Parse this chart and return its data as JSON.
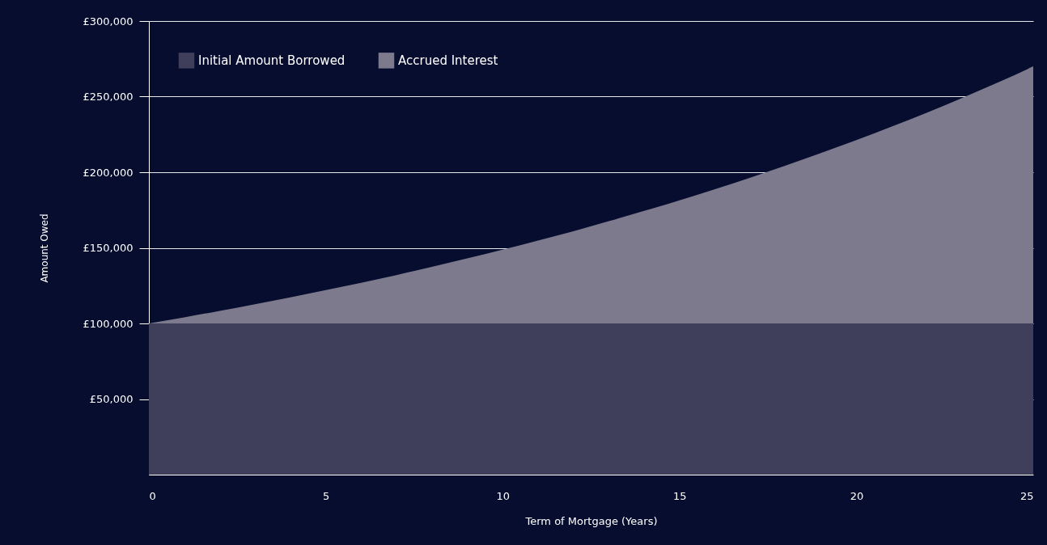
{
  "chart_data": {
    "type": "area",
    "stacked": true,
    "xlabel": "Term of Mortgage (Years)",
    "ylabel": "Amount Owed",
    "x": [
      0,
      1,
      2,
      3,
      4,
      5,
      6,
      7,
      8,
      9,
      10,
      11,
      12,
      13,
      14,
      15,
      16,
      17,
      18,
      19,
      20,
      21,
      22,
      23,
      24,
      25
    ],
    "series": [
      {
        "name": "Initial Amount Borrowed",
        "color": "#403f5b",
        "values": [
          100000,
          100000,
          100000,
          100000,
          100000,
          100000,
          100000,
          100000,
          100000,
          100000,
          100000,
          100000,
          100000,
          100000,
          100000,
          100000,
          100000,
          100000,
          100000,
          100000,
          100000,
          100000,
          100000,
          100000,
          100000,
          100000
        ]
      },
      {
        "name": "Accrued Interest",
        "color": "#7e7a8e",
        "values": [
          0,
          4000,
          8300,
          12700,
          17200,
          22000,
          26900,
          32000,
          37400,
          43000,
          48800,
          54800,
          61000,
          67600,
          74400,
          81400,
          88800,
          96400,
          104400,
          112700,
          121300,
          130200,
          139500,
          149200,
          159300,
          170000
        ]
      }
    ],
    "xlim": [
      0,
      25
    ],
    "xticks": [
      0,
      5,
      10,
      15,
      20,
      25
    ],
    "ylim": [
      0,
      300000
    ],
    "yticks": [
      {
        "value": 50000,
        "label": "£50,000"
      },
      {
        "value": 100000,
        "label": "£100,000"
      },
      {
        "value": 150000,
        "label": "£150,000"
      },
      {
        "value": 200000,
        "label": "£200,000"
      },
      {
        "value": 250000,
        "label": "£250,000"
      },
      {
        "value": 300000,
        "label": "£300,000"
      }
    ],
    "grid": "y",
    "legend": "top left"
  }
}
